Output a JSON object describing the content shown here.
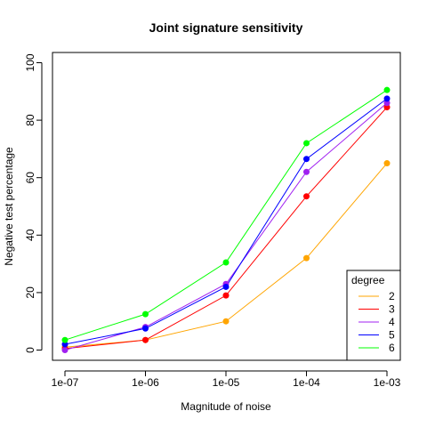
{
  "chart_data": {
    "type": "line",
    "title": "Joint signature sensitivity",
    "xlabel": "Magnitude of noise",
    "ylabel": "Negative test percentage",
    "x": [
      "1e-07",
      "1e-06",
      "1e-05",
      "1e-04",
      "1e-03"
    ],
    "x_scale": "log",
    "ylim": [
      0,
      100
    ],
    "yticks": [
      0,
      20,
      40,
      60,
      80,
      100
    ],
    "grid": false,
    "legend": {
      "title": "degree",
      "position": "bottom-right"
    },
    "series": [
      {
        "name": "2",
        "color": "#FFA500",
        "values": [
          1.0,
          3.5,
          10.0,
          32.0,
          65.0
        ]
      },
      {
        "name": "3",
        "color": "#FF0000",
        "values": [
          0.5,
          3.5,
          19.0,
          53.5,
          84.5
        ]
      },
      {
        "name": "4",
        "color": "#A020F0",
        "values": [
          0.0,
          8.0,
          23.0,
          62.0,
          86.0
        ]
      },
      {
        "name": "5",
        "color": "#0000FF",
        "values": [
          2.0,
          7.5,
          22.0,
          66.5,
          87.5
        ]
      },
      {
        "name": "6",
        "color": "#00FF00",
        "values": [
          3.5,
          12.5,
          30.5,
          72.0,
          90.5
        ]
      }
    ]
  }
}
